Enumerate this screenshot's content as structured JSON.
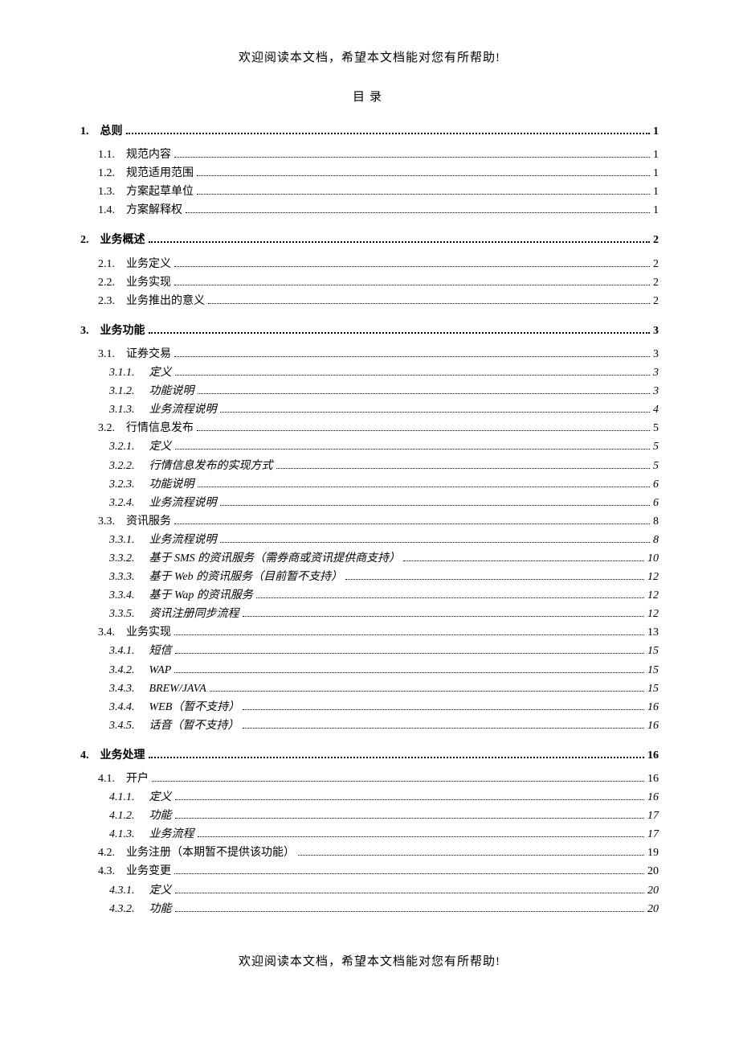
{
  "header_note": "欢迎阅读本文档，希望本文档能对您有所帮助!",
  "footer_note": "欢迎阅读本文档，希望本文档能对您有所帮助!",
  "toc_title": "目录",
  "entries": [
    {
      "level": 1,
      "num": "1.",
      "text": "总则",
      "page": "1"
    },
    {
      "level": 2,
      "num": "1.1.",
      "text": "规范内容",
      "page": "1"
    },
    {
      "level": 2,
      "num": "1.2.",
      "text": "规范适用范围",
      "page": "1"
    },
    {
      "level": 2,
      "num": "1.3.",
      "text": "方案起草单位",
      "page": "1"
    },
    {
      "level": 2,
      "num": "1.4.",
      "text": "方案解释权",
      "page": "1"
    },
    {
      "level": 1,
      "num": "2.",
      "text": "业务概述",
      "page": "2"
    },
    {
      "level": 2,
      "num": "2.1.",
      "text": "业务定义",
      "page": "2"
    },
    {
      "level": 2,
      "num": "2.2.",
      "text": "业务实现",
      "page": "2"
    },
    {
      "level": 2,
      "num": "2.3.",
      "text": "业务推出的意义",
      "page": "2"
    },
    {
      "level": 1,
      "num": "3.",
      "text": "业务功能",
      "page": "3"
    },
    {
      "level": 2,
      "num": "3.1.",
      "text": "证券交易",
      "page": "3"
    },
    {
      "level": 3,
      "num": "3.1.1.",
      "text": "定义",
      "page": "3"
    },
    {
      "level": 3,
      "num": "3.1.2.",
      "text": "功能说明",
      "page": "3"
    },
    {
      "level": 3,
      "num": "3.1.3.",
      "text": "业务流程说明",
      "page": "4"
    },
    {
      "level": 2,
      "num": "3.2.",
      "text": "行情信息发布",
      "page": "5"
    },
    {
      "level": 3,
      "num": "3.2.1.",
      "text": "定义",
      "page": "5"
    },
    {
      "level": 3,
      "num": "3.2.2.",
      "text": "行情信息发布的实现方式",
      "page": "5"
    },
    {
      "level": 3,
      "num": "3.2.3.",
      "text": "功能说明",
      "page": "6"
    },
    {
      "level": 3,
      "num": "3.2.4.",
      "text": "业务流程说明",
      "page": "6"
    },
    {
      "level": 2,
      "num": "3.3.",
      "text": "资讯服务",
      "page": "8"
    },
    {
      "level": 3,
      "num": "3.3.1.",
      "text": "业务流程说明",
      "page": "8"
    },
    {
      "level": 3,
      "num": "3.3.2.",
      "text": "基于 SMS 的资讯服务（需券商或资讯提供商支持）",
      "page": "10"
    },
    {
      "level": 3,
      "num": "3.3.3.",
      "text": "基于 Web 的资讯服务（目前暂不支持）",
      "page": "12"
    },
    {
      "level": 3,
      "num": "3.3.4.",
      "text": "基于 Wap 的资讯服务",
      "page": "12"
    },
    {
      "level": 3,
      "num": "3.3.5.",
      "text": "资讯注册同步流程",
      "page": "12"
    },
    {
      "level": 2,
      "num": "3.4.",
      "text": "业务实现",
      "page": "13"
    },
    {
      "level": 3,
      "num": "3.4.1.",
      "text": "短信",
      "page": "15"
    },
    {
      "level": 3,
      "num": "3.4.2.",
      "text": "WAP",
      "page": "15"
    },
    {
      "level": 3,
      "num": "3.4.3.",
      "text": "BREW/JAVA",
      "page": "15"
    },
    {
      "level": 3,
      "num": "3.4.4.",
      "text": "WEB（暂不支持）",
      "page": "16"
    },
    {
      "level": 3,
      "num": "3.4.5.",
      "text": "话音（暂不支持）",
      "page": "16"
    },
    {
      "level": 1,
      "num": "4.",
      "text": "业务处理",
      "page": "16"
    },
    {
      "level": 2,
      "num": "4.1.",
      "text": "开户",
      "page": "16"
    },
    {
      "level": 3,
      "num": "4.1.1.",
      "text": "定义",
      "page": "16"
    },
    {
      "level": 3,
      "num": "4.1.2.",
      "text": "功能",
      "page": "17"
    },
    {
      "level": 3,
      "num": "4.1.3.",
      "text": "业务流程",
      "page": "17"
    },
    {
      "level": 2,
      "num": "4.2.",
      "text": "业务注册（本期暂不提供该功能）",
      "page": "19"
    },
    {
      "level": 2,
      "num": "4.3.",
      "text": "业务变更",
      "page": "20"
    },
    {
      "level": 3,
      "num": "4.3.1.",
      "text": "定义",
      "page": "20"
    },
    {
      "level": 3,
      "num": "4.3.2.",
      "text": "功能",
      "page": "20"
    }
  ]
}
